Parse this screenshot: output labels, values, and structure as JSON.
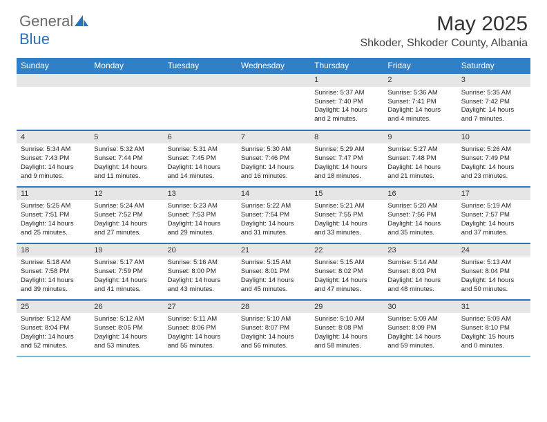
{
  "logo": {
    "general": "General",
    "blue": "Blue"
  },
  "title": "May 2025",
  "location": "Shkoder, Shkoder County, Albania",
  "colors": {
    "header_bg": "#3080c8",
    "header_text": "#ffffff",
    "daynum_bg": "#e6e6e6",
    "border": "#2a71b8",
    "logo_gray": "#6a6a6a",
    "logo_blue": "#2a71b8"
  },
  "weekdays": [
    "Sunday",
    "Monday",
    "Tuesday",
    "Wednesday",
    "Thursday",
    "Friday",
    "Saturday"
  ],
  "weeks": [
    [
      {
        "n": "",
        "lines": []
      },
      {
        "n": "",
        "lines": []
      },
      {
        "n": "",
        "lines": []
      },
      {
        "n": "",
        "lines": []
      },
      {
        "n": "1",
        "lines": [
          "Sunrise: 5:37 AM",
          "Sunset: 7:40 PM",
          "Daylight: 14 hours",
          "and 2 minutes."
        ]
      },
      {
        "n": "2",
        "lines": [
          "Sunrise: 5:36 AM",
          "Sunset: 7:41 PM",
          "Daylight: 14 hours",
          "and 4 minutes."
        ]
      },
      {
        "n": "3",
        "lines": [
          "Sunrise: 5:35 AM",
          "Sunset: 7:42 PM",
          "Daylight: 14 hours",
          "and 7 minutes."
        ]
      }
    ],
    [
      {
        "n": "4",
        "lines": [
          "Sunrise: 5:34 AM",
          "Sunset: 7:43 PM",
          "Daylight: 14 hours",
          "and 9 minutes."
        ]
      },
      {
        "n": "5",
        "lines": [
          "Sunrise: 5:32 AM",
          "Sunset: 7:44 PM",
          "Daylight: 14 hours",
          "and 11 minutes."
        ]
      },
      {
        "n": "6",
        "lines": [
          "Sunrise: 5:31 AM",
          "Sunset: 7:45 PM",
          "Daylight: 14 hours",
          "and 14 minutes."
        ]
      },
      {
        "n": "7",
        "lines": [
          "Sunrise: 5:30 AM",
          "Sunset: 7:46 PM",
          "Daylight: 14 hours",
          "and 16 minutes."
        ]
      },
      {
        "n": "8",
        "lines": [
          "Sunrise: 5:29 AM",
          "Sunset: 7:47 PM",
          "Daylight: 14 hours",
          "and 18 minutes."
        ]
      },
      {
        "n": "9",
        "lines": [
          "Sunrise: 5:27 AM",
          "Sunset: 7:48 PM",
          "Daylight: 14 hours",
          "and 21 minutes."
        ]
      },
      {
        "n": "10",
        "lines": [
          "Sunrise: 5:26 AM",
          "Sunset: 7:49 PM",
          "Daylight: 14 hours",
          "and 23 minutes."
        ]
      }
    ],
    [
      {
        "n": "11",
        "lines": [
          "Sunrise: 5:25 AM",
          "Sunset: 7:51 PM",
          "Daylight: 14 hours",
          "and 25 minutes."
        ]
      },
      {
        "n": "12",
        "lines": [
          "Sunrise: 5:24 AM",
          "Sunset: 7:52 PM",
          "Daylight: 14 hours",
          "and 27 minutes."
        ]
      },
      {
        "n": "13",
        "lines": [
          "Sunrise: 5:23 AM",
          "Sunset: 7:53 PM",
          "Daylight: 14 hours",
          "and 29 minutes."
        ]
      },
      {
        "n": "14",
        "lines": [
          "Sunrise: 5:22 AM",
          "Sunset: 7:54 PM",
          "Daylight: 14 hours",
          "and 31 minutes."
        ]
      },
      {
        "n": "15",
        "lines": [
          "Sunrise: 5:21 AM",
          "Sunset: 7:55 PM",
          "Daylight: 14 hours",
          "and 33 minutes."
        ]
      },
      {
        "n": "16",
        "lines": [
          "Sunrise: 5:20 AM",
          "Sunset: 7:56 PM",
          "Daylight: 14 hours",
          "and 35 minutes."
        ]
      },
      {
        "n": "17",
        "lines": [
          "Sunrise: 5:19 AM",
          "Sunset: 7:57 PM",
          "Daylight: 14 hours",
          "and 37 minutes."
        ]
      }
    ],
    [
      {
        "n": "18",
        "lines": [
          "Sunrise: 5:18 AM",
          "Sunset: 7:58 PM",
          "Daylight: 14 hours",
          "and 39 minutes."
        ]
      },
      {
        "n": "19",
        "lines": [
          "Sunrise: 5:17 AM",
          "Sunset: 7:59 PM",
          "Daylight: 14 hours",
          "and 41 minutes."
        ]
      },
      {
        "n": "20",
        "lines": [
          "Sunrise: 5:16 AM",
          "Sunset: 8:00 PM",
          "Daylight: 14 hours",
          "and 43 minutes."
        ]
      },
      {
        "n": "21",
        "lines": [
          "Sunrise: 5:15 AM",
          "Sunset: 8:01 PM",
          "Daylight: 14 hours",
          "and 45 minutes."
        ]
      },
      {
        "n": "22",
        "lines": [
          "Sunrise: 5:15 AM",
          "Sunset: 8:02 PM",
          "Daylight: 14 hours",
          "and 47 minutes."
        ]
      },
      {
        "n": "23",
        "lines": [
          "Sunrise: 5:14 AM",
          "Sunset: 8:03 PM",
          "Daylight: 14 hours",
          "and 48 minutes."
        ]
      },
      {
        "n": "24",
        "lines": [
          "Sunrise: 5:13 AM",
          "Sunset: 8:04 PM",
          "Daylight: 14 hours",
          "and 50 minutes."
        ]
      }
    ],
    [
      {
        "n": "25",
        "lines": [
          "Sunrise: 5:12 AM",
          "Sunset: 8:04 PM",
          "Daylight: 14 hours",
          "and 52 minutes."
        ]
      },
      {
        "n": "26",
        "lines": [
          "Sunrise: 5:12 AM",
          "Sunset: 8:05 PM",
          "Daylight: 14 hours",
          "and 53 minutes."
        ]
      },
      {
        "n": "27",
        "lines": [
          "Sunrise: 5:11 AM",
          "Sunset: 8:06 PM",
          "Daylight: 14 hours",
          "and 55 minutes."
        ]
      },
      {
        "n": "28",
        "lines": [
          "Sunrise: 5:10 AM",
          "Sunset: 8:07 PM",
          "Daylight: 14 hours",
          "and 56 minutes."
        ]
      },
      {
        "n": "29",
        "lines": [
          "Sunrise: 5:10 AM",
          "Sunset: 8:08 PM",
          "Daylight: 14 hours",
          "and 58 minutes."
        ]
      },
      {
        "n": "30",
        "lines": [
          "Sunrise: 5:09 AM",
          "Sunset: 8:09 PM",
          "Daylight: 14 hours",
          "and 59 minutes."
        ]
      },
      {
        "n": "31",
        "lines": [
          "Sunrise: 5:09 AM",
          "Sunset: 8:10 PM",
          "Daylight: 15 hours",
          "and 0 minutes."
        ]
      }
    ]
  ]
}
